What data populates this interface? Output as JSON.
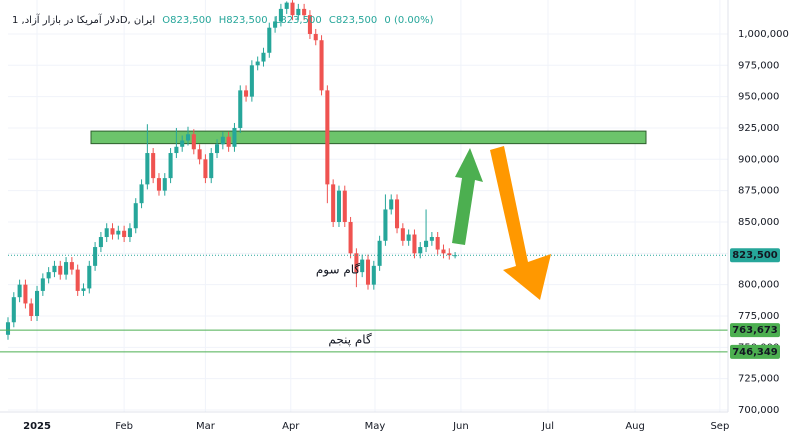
{
  "chart_data": {
    "type": "candlestick",
    "header": {
      "symbol": "دلار آمریکا در بازار آزاد, 1D, ایران",
      "open": "O823,500",
      "high": "H823,500",
      "low": "L823,500",
      "close": "C823,500",
      "change": "0 (0.00%)"
    },
    "xlim": [
      0,
      124
    ],
    "xticks": [
      {
        "value": 5,
        "label": "2025"
      },
      {
        "value": 20,
        "label": "Feb"
      },
      {
        "value": 34,
        "label": "Mar"
      },
      {
        "value": 48.7,
        "label": "Apr"
      },
      {
        "value": 63.2,
        "label": "May"
      },
      {
        "value": 78,
        "label": "Jun"
      },
      {
        "value": 93,
        "label": "Jul"
      },
      {
        "value": 108,
        "label": "Aug"
      },
      {
        "value": 122.6,
        "label": "Sep"
      }
    ],
    "ylim": [
      698400,
      1027100
    ],
    "yticks": [
      {
        "value": 700000,
        "label": "700,000"
      },
      {
        "value": 725000,
        "label": "725,000"
      },
      {
        "value": 750000,
        "label": "750,000"
      },
      {
        "value": 775000,
        "label": "775,000"
      },
      {
        "value": 800000,
        "label": "800,000"
      },
      {
        "value": 825000,
        "label": "825,000"
      },
      {
        "value": 850000,
        "label": "850,000"
      },
      {
        "value": 875000,
        "label": "875,000"
      },
      {
        "value": 900000,
        "label": "900,000"
      },
      {
        "value": 925000,
        "label": "925,000"
      },
      {
        "value": 950000,
        "label": "950,000"
      },
      {
        "value": 975000,
        "label": "975,000"
      },
      {
        "value": 1000000,
        "label": "1,000,000"
      }
    ],
    "grid": true,
    "up_color": "#26a69a",
    "down_color": "#ef5350",
    "open": [
      760000,
      770000,
      790000,
      800000,
      785000,
      775000,
      795000,
      805000,
      810000,
      815000,
      808000,
      818000,
      812000,
      795000,
      797000,
      815000,
      830000,
      838000,
      845000,
      840000,
      843000,
      838000,
      845000,
      865000,
      880000,
      905000,
      885000,
      875000,
      885000,
      905000,
      910000,
      915000,
      920000,
      908000,
      900000,
      885000,
      905000,
      912000,
      918000,
      910000,
      925000,
      955000,
      950000,
      975000,
      978000,
      985000,
      1005000,
      1010000,
      1020000,
      1025000,
      1015000,
      1020000,
      1015000,
      1000000,
      995000,
      955000,
      880000,
      850000,
      875000,
      850000,
      825000,
      810000,
      820000,
      800000,
      815000,
      835000,
      860000,
      868000,
      845000,
      835000,
      840000,
      825000,
      830000,
      835000,
      838000,
      828000,
      825000,
      823500
    ],
    "high": [
      774000,
      794000,
      804000,
      804000,
      789000,
      799000,
      809000,
      814000,
      819000,
      819000,
      822000,
      822000,
      816000,
      801000,
      819000,
      834000,
      842000,
      849000,
      849000,
      847000,
      847000,
      849000,
      869000,
      884000,
      928000,
      909000,
      889000,
      889000,
      909000,
      925000,
      919000,
      926000,
      924000,
      912000,
      904000,
      909000,
      916000,
      922000,
      922000,
      929000,
      959000,
      959000,
      979000,
      982000,
      989000,
      1009000,
      1014000,
      1024000,
      1026000,
      1027000,
      1024000,
      1024000,
      1019000,
      1004000,
      999000,
      959000,
      884000,
      879000,
      879000,
      854000,
      829000,
      824000,
      824000,
      819000,
      839000,
      872000,
      872000,
      872000,
      849000,
      844000,
      844000,
      834000,
      860000,
      842000,
      842000,
      832000,
      829000,
      826000
    ],
    "low": [
      756000,
      766000,
      786000,
      781000,
      771000,
      771000,
      791000,
      801000,
      806000,
      804000,
      804000,
      808000,
      791000,
      791000,
      793000,
      811000,
      826000,
      834000,
      836000,
      836000,
      834000,
      834000,
      841000,
      861000,
      876000,
      881000,
      871000,
      871000,
      881000,
      901000,
      906000,
      911000,
      904000,
      896000,
      881000,
      881000,
      901000,
      908000,
      906000,
      906000,
      921000,
      946000,
      946000,
      971000,
      974000,
      981000,
      1001000,
      1006000,
      1016000,
      1011000,
      1011000,
      1011000,
      996000,
      991000,
      951000,
      865000,
      846000,
      846000,
      846000,
      821000,
      798000,
      806000,
      796000,
      796000,
      811000,
      831000,
      856000,
      841000,
      831000,
      831000,
      821000,
      821000,
      826000,
      831000,
      824000,
      821000,
      820000,
      821000
    ],
    "close": [
      770000,
      790000,
      800000,
      785000,
      775000,
      795000,
      805000,
      810000,
      815000,
      808000,
      818000,
      812000,
      795000,
      797000,
      815000,
      830000,
      838000,
      845000,
      840000,
      843000,
      838000,
      845000,
      865000,
      880000,
      905000,
      885000,
      875000,
      885000,
      905000,
      910000,
      915000,
      920000,
      908000,
      900000,
      885000,
      905000,
      912000,
      918000,
      910000,
      925000,
      955000,
      950000,
      975000,
      978000,
      985000,
      1005000,
      1010000,
      1020000,
      1025000,
      1015000,
      1020000,
      1015000,
      1000000,
      995000,
      955000,
      880000,
      850000,
      875000,
      850000,
      825000,
      810000,
      820000,
      800000,
      815000,
      835000,
      860000,
      868000,
      845000,
      835000,
      840000,
      825000,
      830000,
      835000,
      838000,
      828000,
      825000,
      823500,
      823500
    ],
    "last": {
      "value": 823500,
      "label": "823,500"
    },
    "zone": {
      "low": 912500,
      "high": 922500,
      "color": "#6cc46b"
    },
    "levels": [
      {
        "value": 763673,
        "label": "763,673"
      },
      {
        "value": 746349,
        "label": "746,349"
      }
    ],
    "annotations": [
      "گام سوم",
      "گام پنجم"
    ]
  }
}
